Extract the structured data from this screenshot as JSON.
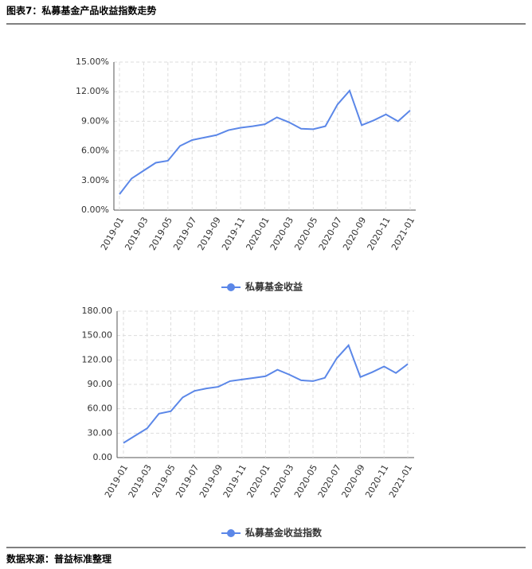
{
  "header": {
    "title": "图表7：私募基金产品收益指数走势"
  },
  "footer": {
    "source": "数据来源：普益标准整理"
  },
  "chart_data": [
    {
      "type": "line",
      "grid": true,
      "categories": [
        "2019-01",
        null,
        "2019-03",
        null,
        "2019-05",
        null,
        "2019-07",
        null,
        "2019-09",
        null,
        "2019-11",
        null,
        "2020-01",
        null,
        "2020-03",
        null,
        "2020-05",
        null,
        "2020-07",
        null,
        "2020-09",
        null,
        "2020-11",
        null,
        "2021-01"
      ],
      "series": [
        {
          "name": "私募基金收益",
          "color": "#5b87e8",
          "values": [
            1.6,
            3.2,
            4.0,
            4.8,
            5.0,
            6.5,
            7.1,
            7.35,
            7.6,
            8.1,
            8.35,
            8.5,
            8.7,
            9.4,
            8.9,
            8.25,
            8.2,
            8.5,
            10.7,
            12.1,
            8.6,
            9.1,
            9.7,
            9.0,
            10.1
          ]
        }
      ],
      "ylim": [
        0,
        15
      ],
      "yticks": [
        {
          "value": 0,
          "label": "0.00%"
        },
        {
          "value": 3,
          "label": "3.00%"
        },
        {
          "value": 6,
          "label": "6.00%"
        },
        {
          "value": 9,
          "label": "9.00%"
        },
        {
          "value": 12,
          "label": "12.00%"
        },
        {
          "value": 15,
          "label": "15.00%"
        }
      ]
    },
    {
      "type": "line",
      "grid": true,
      "categories": [
        "2019-01",
        null,
        "2019-03",
        null,
        "2019-05",
        null,
        "2019-07",
        null,
        "2019-09",
        null,
        "2019-11",
        null,
        "2020-01",
        null,
        "2020-03",
        null,
        "2020-05",
        null,
        "2020-07",
        null,
        "2020-09",
        null,
        "2020-11",
        null,
        "2021-01"
      ],
      "series": [
        {
          "name": "私募基金收益指数",
          "color": "#5b87e8",
          "values": [
            18,
            27,
            36,
            54,
            57,
            74,
            82,
            85,
            87,
            94,
            96,
            98,
            100,
            108,
            102,
            95,
            94,
            98,
            122,
            138,
            99,
            105,
            112,
            104,
            115
          ]
        }
      ],
      "ylim": [
        0,
        180
      ],
      "yticks": [
        {
          "value": 0,
          "label": "0.00"
        },
        {
          "value": 30,
          "label": "30.00"
        },
        {
          "value": 60,
          "label": "60.00"
        },
        {
          "value": 90,
          "label": "90.00"
        },
        {
          "value": 120,
          "label": "120.00"
        },
        {
          "value": 150,
          "label": "150.00"
        },
        {
          "value": 180,
          "label": "180.00"
        }
      ]
    }
  ]
}
